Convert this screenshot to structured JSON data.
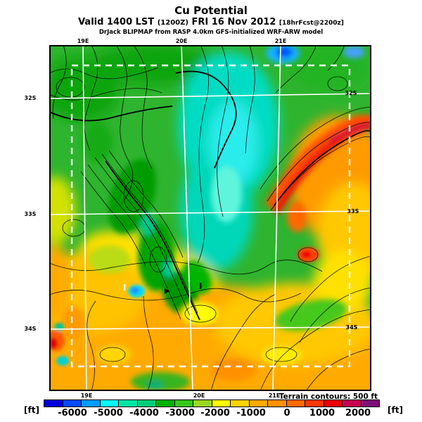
{
  "header": {
    "title": "Cu Potential",
    "valid_prefix": "Valid 1400 LST",
    "valid_zulu": "(1200Z)",
    "valid_date": "FRI 16 Nov 2012",
    "valid_fcst": "[18hrFcst@2200z]",
    "model_line": "DrJack BLIPMAP from RASP 4.0km GFS-initialized WRF-ARW model"
  },
  "map": {
    "top_ticks": [
      "19E",
      "20E",
      "21E"
    ],
    "bottom_ticks": [
      "19E",
      "20E",
      "21E"
    ],
    "left_ticks": [
      "32S",
      "33S",
      "34S"
    ],
    "right_ticks": [
      "32S",
      "33S",
      "34S"
    ],
    "terrain_note": "Terrain contours: 500 ft"
  },
  "colorbar": {
    "unit_left": "[ft]",
    "unit_right": "[ft]",
    "ticks": [
      "-6000",
      "-5000",
      "-4000",
      "-3000",
      "-2000",
      "-1000",
      "0",
      "1000",
      "2000"
    ],
    "colors": [
      "#0000dc",
      "#004bff",
      "#009bff",
      "#00ffff",
      "#00e6a5",
      "#00cd78",
      "#00af00",
      "#37c819",
      "#9bd723",
      "#ffff00",
      "#ffd200",
      "#ffaa00",
      "#ff9100",
      "#ff6900",
      "#ff3700",
      "#eb0000",
      "#c80050",
      "#7d0f78"
    ]
  }
}
